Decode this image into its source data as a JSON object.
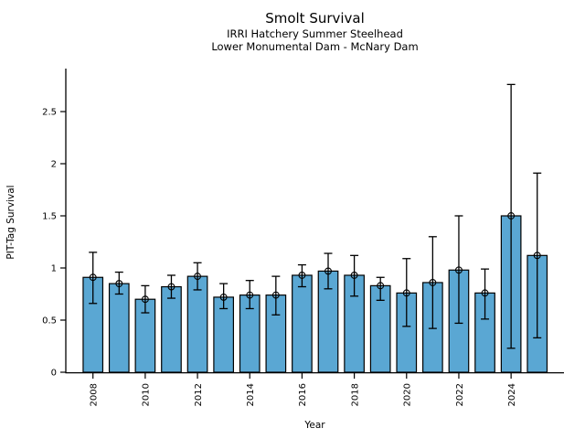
{
  "chart_data": {
    "type": "bar",
    "title": "Smolt Survival",
    "subtitle1": "IRRI Hatchery Summer Steelhead",
    "subtitle2": "Lower Monumental Dam - McNary Dam",
    "xlabel": "Year",
    "ylabel": "PIT-Tag Survival",
    "categories": [
      "2008",
      "2009",
      "2010",
      "2011",
      "2012",
      "2013",
      "2014",
      "2015",
      "2016",
      "2017",
      "2018",
      "2019",
      "2020",
      "2021",
      "2022",
      "2023",
      "2024",
      "2025"
    ],
    "values": [
      0.91,
      0.85,
      0.7,
      0.82,
      0.92,
      0.72,
      0.74,
      0.74,
      0.93,
      0.97,
      0.93,
      0.83,
      0.76,
      0.86,
      0.98,
      0.76,
      1.5,
      1.12
    ],
    "error_low": [
      0.66,
      0.75,
      0.57,
      0.71,
      0.79,
      0.61,
      0.61,
      0.55,
      0.82,
      0.8,
      0.73,
      0.69,
      0.44,
      0.42,
      0.47,
      0.51,
      0.23,
      0.33
    ],
    "error_high": [
      1.15,
      0.96,
      0.83,
      0.93,
      1.05,
      0.85,
      0.88,
      0.92,
      1.03,
      1.14,
      1.12,
      0.91,
      1.09,
      1.3,
      1.5,
      0.99,
      2.76,
      1.91
    ],
    "xtick_labels": [
      "2008",
      "2010",
      "2012",
      "2014",
      "2016",
      "2018",
      "2020",
      "2022",
      "2024"
    ],
    "ytick_values": [
      0,
      0.5,
      1,
      1.5,
      2,
      2.5
    ],
    "ytick_labels": [
      "0",
      "0.5",
      "1",
      "1.5",
      "2",
      "2.5"
    ],
    "ylim": [
      0,
      2.9
    ],
    "grid": false,
    "legend": null,
    "bar_color": "#5AA7D3",
    "bar_edge_color": "#000000",
    "error_color": "#000000",
    "marker": "open-circle"
  }
}
